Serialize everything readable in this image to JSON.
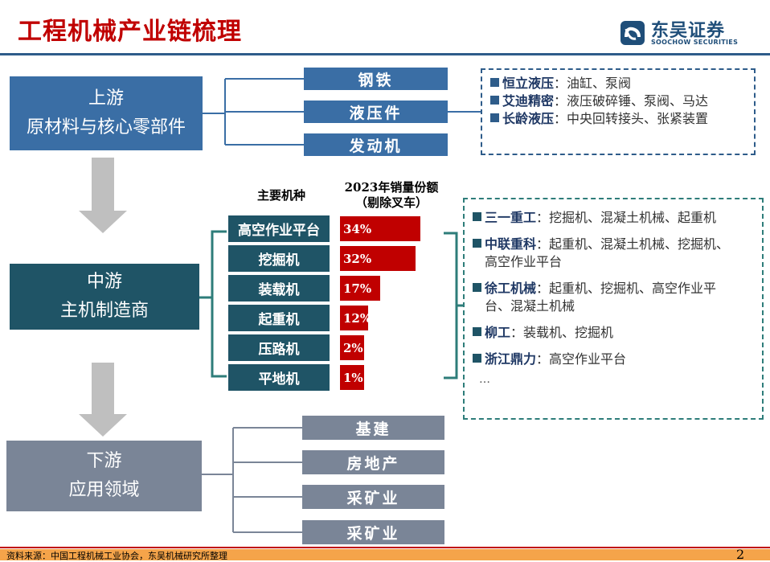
{
  "header": {
    "title": "工程机械产业链梳理",
    "logo_cn": "东吴证券",
    "logo_en": "SOOCHOW SECURITIES"
  },
  "upstream": {
    "title": "上游",
    "subtitle": "原材料与核心零部件",
    "items": [
      "钢铁",
      "液压件",
      "发动机"
    ],
    "companies": [
      {
        "name": "恒立液压",
        "desc": "油缸、泵阀"
      },
      {
        "name": "艾迪精密",
        "desc": "液压破碎锤、泵阀、马达"
      },
      {
        "name": "长龄液压",
        "desc": "中央回转接头、张紧装置"
      }
    ]
  },
  "midstream": {
    "title": "中游",
    "subtitle": "主机制造商",
    "types_header": "主要机种",
    "share_header_1": "2023年销量份额",
    "share_header_2": "（剔除叉车）",
    "companies": [
      {
        "name": "三一重工",
        "desc": "挖掘机、混凝土机械、起重机"
      },
      {
        "name": "中联重科",
        "desc": "起重机、混凝土机械、挖掘机、",
        "desc2": "高空作业平台"
      },
      {
        "name": "徐工机械",
        "desc": "起重机、挖掘机、高空作业平",
        "desc2": "台、混凝土机械"
      },
      {
        "name": "柳工",
        "desc": "装载机、挖掘机"
      },
      {
        "name": "浙江鼎力",
        "desc": "高空作业平台"
      }
    ],
    "ellipsis": "…"
  },
  "chart_data": {
    "type": "bar",
    "categories": [
      "高空作业平台",
      "挖掘机",
      "装载机",
      "起重机",
      "压路机",
      "平地机"
    ],
    "values": [
      34,
      32,
      17,
      12,
      2,
      1
    ],
    "labels": [
      "34%",
      "32%",
      "17%",
      "12%",
      "2%",
      "1%"
    ],
    "unit": "%"
  },
  "downstream": {
    "title": "下游",
    "subtitle": "应用领域",
    "items": [
      "基建",
      "房地产",
      "采矿业",
      "采矿业"
    ]
  },
  "footer": {
    "source": "资料来源：中国工程机械工业协会，东吴机械研究所整理",
    "page": "2"
  },
  "colors": {
    "upstream": "#3a6ea5",
    "midstream": "#1f5466",
    "downstream": "#7a8597",
    "bar": "#c00000",
    "title": "#c00000"
  }
}
